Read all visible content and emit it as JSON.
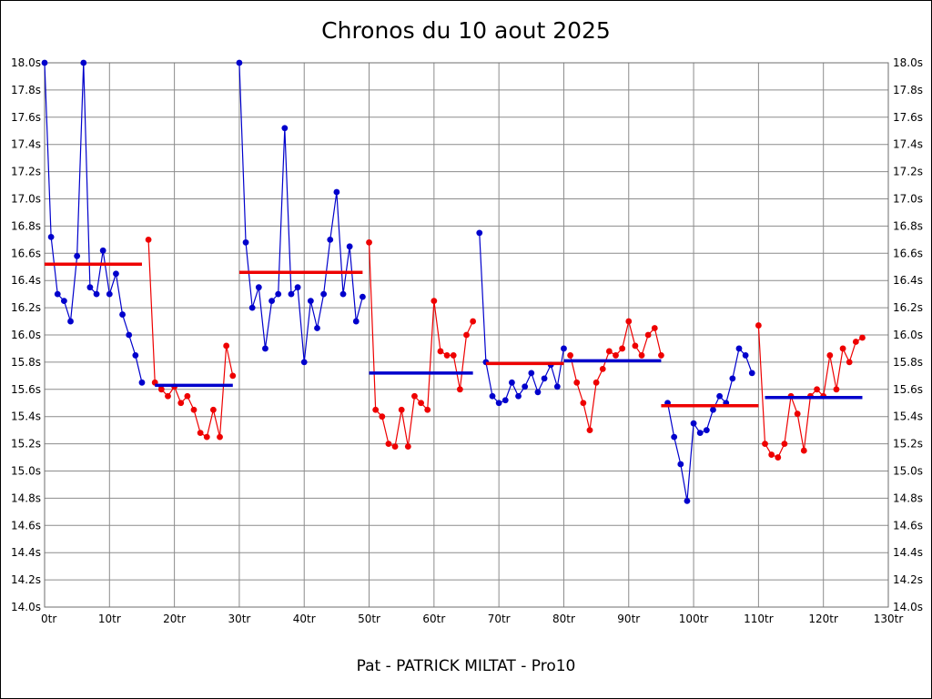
{
  "page": {
    "title": "Chronos du 10 aout 2025",
    "footer": "Pat - PATRICK MILTAT - Pro10"
  },
  "chart_data": {
    "type": "line",
    "title": "Chronos du 10 aout 2025",
    "x_unit": "tr",
    "y_unit": "s",
    "xlim": [
      0,
      130
    ],
    "ylim": [
      14.0,
      18.0
    ],
    "x_tick_step": 10,
    "y_tick_step": 0.2,
    "grid": true,
    "x_tick_labels": [
      "0tr",
      "10tr",
      "20tr",
      "30tr",
      "40tr",
      "50tr",
      "60tr",
      "70tr",
      "80tr",
      "90tr",
      "100tr",
      "110tr",
      "120tr",
      "130tr"
    ],
    "y_tick_labels": [
      "18.0s",
      "17.8s",
      "17.6s",
      "17.4s",
      "17.2s",
      "17.0s",
      "16.8s",
      "16.6s",
      "16.4s",
      "16.2s",
      "16.0s",
      "15.8s",
      "15.6s",
      "15.4s",
      "15.2s",
      "15.0s",
      "14.8s",
      "14.6s",
      "14.4s",
      "14.2s",
      "14.0s"
    ],
    "series": [
      {
        "name": "run-1",
        "color": "#0000cc",
        "x_start": 0,
        "values": [
          18.0,
          16.72,
          16.3,
          16.25,
          16.1,
          16.58,
          18.0,
          16.35,
          16.3,
          16.62,
          16.3,
          16.45,
          16.15,
          16.0,
          15.85,
          15.65
        ]
      },
      {
        "name": "run-2",
        "color": "#ee0000",
        "x_start": 16,
        "values": [
          16.7,
          15.65,
          15.6,
          15.55,
          15.62,
          15.5,
          15.55,
          15.45,
          15.28,
          15.25,
          15.45,
          15.25,
          15.92,
          15.7
        ]
      },
      {
        "name": "run-3",
        "color": "#0000cc",
        "x_start": 30,
        "values": [
          18.0,
          16.68,
          16.2,
          16.35,
          15.9,
          16.25,
          16.3,
          17.52,
          16.3,
          16.35,
          15.8,
          16.25,
          16.05,
          16.3,
          16.7,
          17.05,
          16.3,
          16.65,
          16.1,
          16.28
        ]
      },
      {
        "name": "run-4",
        "color": "#ee0000",
        "x_start": 50,
        "values": [
          16.68,
          15.45,
          15.4,
          15.2,
          15.18,
          15.45,
          15.18,
          15.55,
          15.5,
          15.45,
          16.25,
          15.88,
          15.85,
          15.85,
          15.6,
          16.0,
          16.1
        ]
      },
      {
        "name": "run-5",
        "color": "#0000cc",
        "x_start": 67,
        "values": [
          16.75,
          15.8,
          15.55,
          15.5,
          15.52,
          15.65,
          15.55,
          15.62,
          15.72,
          15.58,
          15.68,
          15.78,
          15.62,
          15.9
        ]
      },
      {
        "name": "run-6",
        "color": "#ee0000",
        "x_start": 81,
        "values": [
          15.85,
          15.65,
          15.5,
          15.3,
          15.65,
          15.75,
          15.88,
          15.85,
          15.9,
          16.1,
          15.92,
          15.85,
          16.0,
          16.05,
          15.85
        ]
      },
      {
        "name": "run-7",
        "color": "#0000cc",
        "x_start": 96,
        "values": [
          15.5,
          15.25,
          15.05,
          14.78,
          15.35,
          15.28,
          15.3,
          15.45,
          15.55,
          15.5,
          15.68,
          15.9,
          15.85,
          15.72
        ]
      },
      {
        "name": "run-8",
        "color": "#ee0000",
        "x_start": 110,
        "values": [
          16.07,
          15.2,
          15.12,
          15.1,
          15.2,
          15.55,
          15.42,
          15.15,
          15.55,
          15.6,
          15.55,
          15.85,
          15.6,
          15.9,
          15.8,
          15.95,
          15.98
        ]
      }
    ],
    "mean_lines": [
      {
        "color": "#ee0000",
        "x1": 0,
        "x2": 15,
        "y": 16.52
      },
      {
        "color": "#0000cc",
        "x1": 17,
        "x2": 29,
        "y": 15.63
      },
      {
        "color": "#ee0000",
        "x1": 30,
        "x2": 49,
        "y": 16.46
      },
      {
        "color": "#0000cc",
        "x1": 50,
        "x2": 66,
        "y": 15.72
      },
      {
        "color": "#ee0000",
        "x1": 68,
        "x2": 80,
        "y": 15.79
      },
      {
        "color": "#0000cc",
        "x1": 80,
        "x2": 95,
        "y": 15.81
      },
      {
        "color": "#ee0000",
        "x1": 95,
        "x2": 110,
        "y": 15.48
      },
      {
        "color": "#0000cc",
        "x1": 111,
        "x2": 126,
        "y": 15.54
      }
    ]
  }
}
